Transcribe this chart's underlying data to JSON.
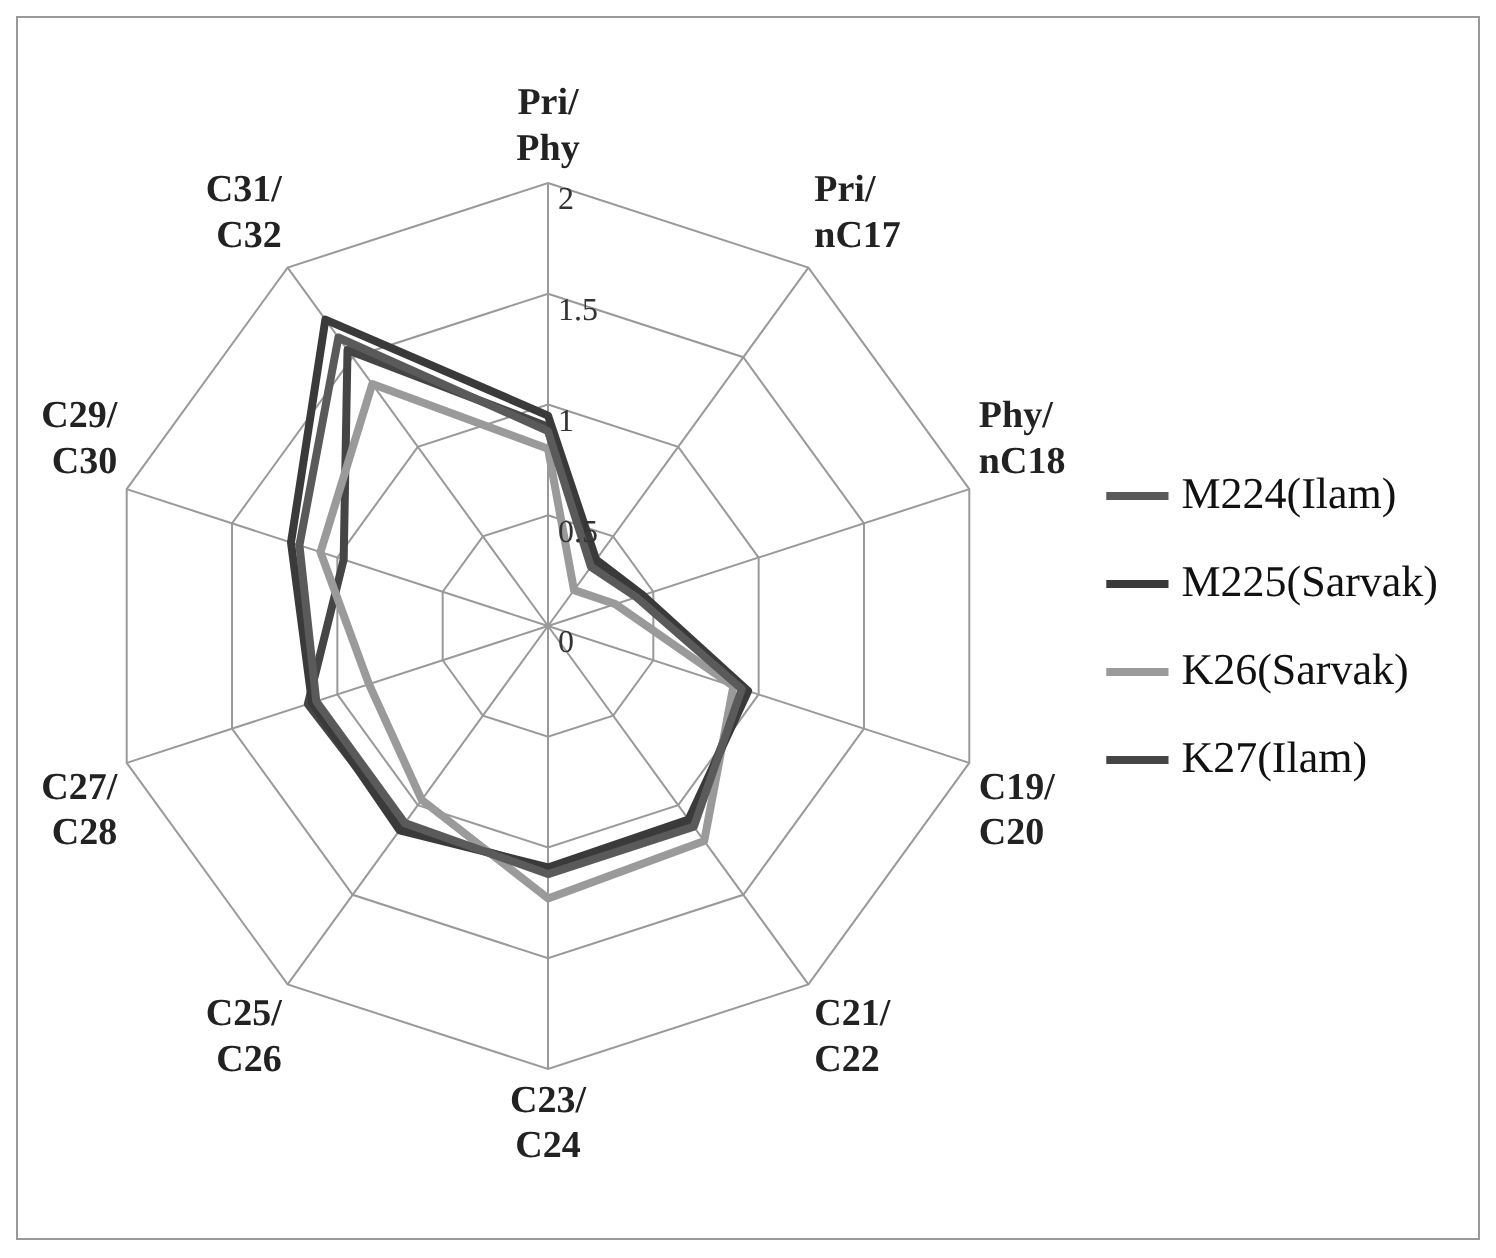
{
  "chart_data": {
    "type": "radar",
    "categories": [
      "Pri/Phy",
      "Pri/nC17",
      "Phy/nC18",
      "C19/C20",
      "C21/C22",
      "C23/C24",
      "C25/C26",
      "C27/C28",
      "C29/C30",
      "C31/C32"
    ],
    "series": [
      {
        "name": "M224(Ilam)",
        "color": "#5a5a5a",
        "values": [
          0.88,
          0.33,
          0.42,
          0.92,
          1.12,
          1.12,
          1.1,
          1.1,
          1.18,
          1.61
        ]
      },
      {
        "name": "M225(Sarvak)",
        "color": "#3a3a3a",
        "values": [
          0.95,
          0.37,
          0.45,
          0.95,
          1.08,
          1.09,
          1.14,
          1.12,
          1.22,
          1.71
        ]
      },
      {
        "name": "K26(Sarvak)",
        "color": "#9a9a9a",
        "values": [
          0.8,
          0.2,
          0.32,
          0.88,
          1.2,
          1.23,
          0.97,
          0.85,
          1.08,
          1.35
        ]
      },
      {
        "name": "K27(Ilam)",
        "color": "#454545",
        "values": [
          0.9,
          0.35,
          0.44,
          0.93,
          1.1,
          1.1,
          1.12,
          1.14,
          0.97,
          1.54
        ]
      }
    ],
    "ylim": [
      0,
      2
    ],
    "yticks": [
      0,
      0.5,
      1,
      1.5,
      2
    ],
    "grid": true,
    "legend": "right",
    "marker": "none"
  }
}
